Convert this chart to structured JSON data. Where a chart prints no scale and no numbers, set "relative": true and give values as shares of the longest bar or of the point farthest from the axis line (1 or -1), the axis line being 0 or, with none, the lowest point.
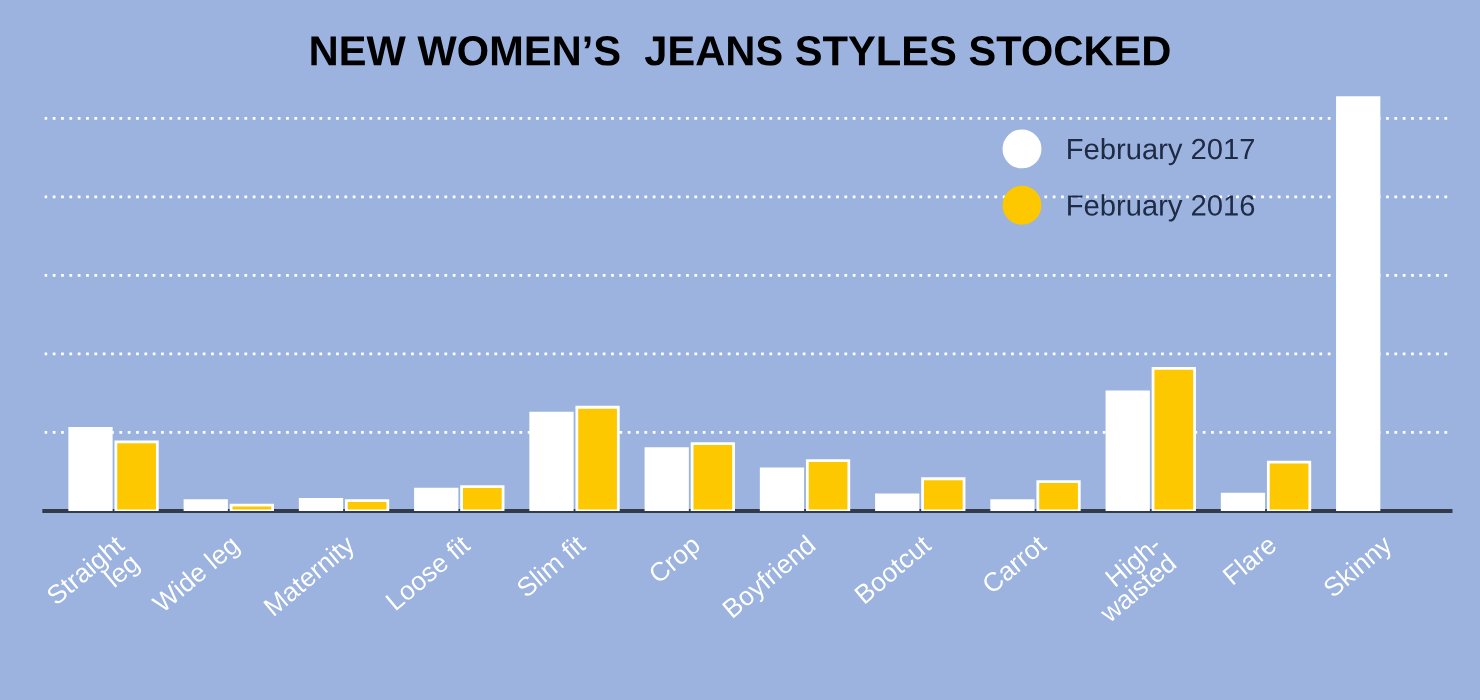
{
  "chart_data": {
    "type": "bar",
    "title": "NEW WOMEN’S  JEANS STYLES STOCKED",
    "relative": true,
    "categories": [
      "Straight\nleg",
      "Wide leg",
      "Maternity",
      "Loose fit",
      "Slim fit",
      "Crop",
      "Boyfriend",
      "Bootcut",
      "Carrot",
      "High-\nwaisted",
      "Flare",
      "Skinny"
    ],
    "series": [
      {
        "name": "February 2017",
        "color": "#ffffff",
        "values": [
          0.2,
          0.025,
          0.028,
          0.053,
          0.237,
          0.151,
          0.102,
          0.039,
          0.025,
          0.288,
          0.041,
          1.0
        ]
      },
      {
        "name": "February 2016",
        "color": "#fdc800",
        "values": [
          0.167,
          0.014,
          0.025,
          0.059,
          0.251,
          0.163,
          0.122,
          0.078,
          0.071,
          0.345,
          0.118,
          null
        ]
      }
    ],
    "grid": "y",
    "legend": "top right",
    "marker": "circle"
  }
}
